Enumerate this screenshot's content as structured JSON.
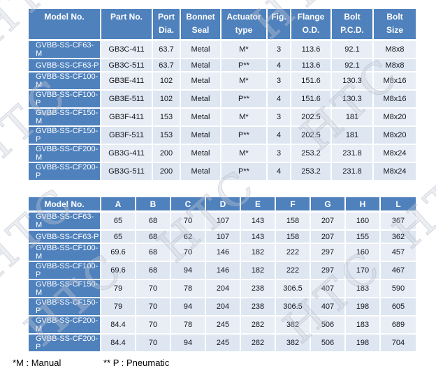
{
  "page": {
    "watermark_text": "HTC",
    "footnote_manual": "*M : Manual",
    "footnote_pneumatic": "** P : Pneumatic"
  },
  "colors": {
    "header_blue": "#4f81bd",
    "row_light": "#e9edf5",
    "row_alt": "#dde6f1",
    "text_white": "#ffffff",
    "text_dark": "#16161e"
  },
  "spec_table": {
    "columns": [
      "Model No.",
      "Part No.",
      "Port\nDia.",
      "Bonnet\nSeal",
      "Actuator\ntype",
      "Fig.",
      "Flange\nO.D.",
      "Bolt\nP.C.D.",
      "Bolt\nSize"
    ],
    "rows": [
      [
        "GVBB-SS-CF63-M",
        "GB3C-411",
        "63.7",
        "Metal",
        "M*",
        "3",
        "113.6",
        "92.1",
        "M8x8"
      ],
      [
        "GVBB-SS-CF63-P",
        "GB3C-511",
        "63.7",
        "Metal",
        "P**",
        "4",
        "113.6",
        "92.1",
        "M8x8"
      ],
      [
        "GVBB-SS-CF100-M",
        "GB3E-411",
        "102",
        "Metal",
        "M*",
        "3",
        "151.6",
        "130.3",
        "M8x16"
      ],
      [
        "GVBB-SS-CF100-P",
        "GB3E-511",
        "102",
        "Metal",
        "P**",
        "4",
        "151.6",
        "130.3",
        "M8x16"
      ],
      [
        "GVBB-SS-CF150-M",
        "GB3F-411",
        "153",
        "Metal",
        "M*",
        "3",
        "202.5",
        "181",
        "M8x20"
      ],
      [
        "GVBB-SS-CF150-P",
        "GB3F-511",
        "153",
        "Metal",
        "P**",
        "4",
        "202.5",
        "181",
        "M8x20"
      ],
      [
        "GVBB-SS-CF200-M",
        "GB3G-411",
        "200",
        "Metal",
        "M*",
        "3",
        "253.2",
        "231.8",
        "M8x24"
      ],
      [
        "GVBB-SS-CF200-P",
        "GB3G-511",
        "200",
        "Metal",
        "P**",
        "4",
        "253.2",
        "231.8",
        "M8x24"
      ]
    ]
  },
  "dimension_table": {
    "columns": [
      "Model No.",
      "A",
      "B",
      "C",
      "D",
      "E",
      "F",
      "G",
      "H",
      "L"
    ],
    "rows": [
      [
        "GVBB-SS-CF63-M",
        "65",
        "68",
        "70",
        "107",
        "143",
        "158",
        "207",
        "160",
        "367"
      ],
      [
        "GVBB-SS-CF63-P",
        "65",
        "68",
        "62",
        "107",
        "143",
        "158",
        "207",
        "155",
        "362"
      ],
      [
        "GVBB-SS-CF100-M",
        "69.6",
        "68",
        "70",
        "146",
        "182",
        "222",
        "297",
        "160",
        "457"
      ],
      [
        "GVBB-SS-CF100-P",
        "69.6",
        "68",
        "94",
        "146",
        "182",
        "222",
        "297",
        "170",
        "467"
      ],
      [
        "GVBB-SS-CF150-M",
        "79",
        "70",
        "78",
        "204",
        "238",
        "306.5",
        "407",
        "183",
        "590"
      ],
      [
        "GVBB-SS-CF150-P",
        "79",
        "70",
        "94",
        "204",
        "238",
        "306.5",
        "407",
        "198",
        "605"
      ],
      [
        "GVBB-SS-CF200-M",
        "84.4",
        "70",
        "78",
        "245",
        "282",
        "382",
        "506",
        "183",
        "689"
      ],
      [
        "GVBB-SS-CF200-P",
        "84.4",
        "70",
        "94",
        "245",
        "282",
        "382",
        "506",
        "198",
        "704"
      ]
    ]
  }
}
